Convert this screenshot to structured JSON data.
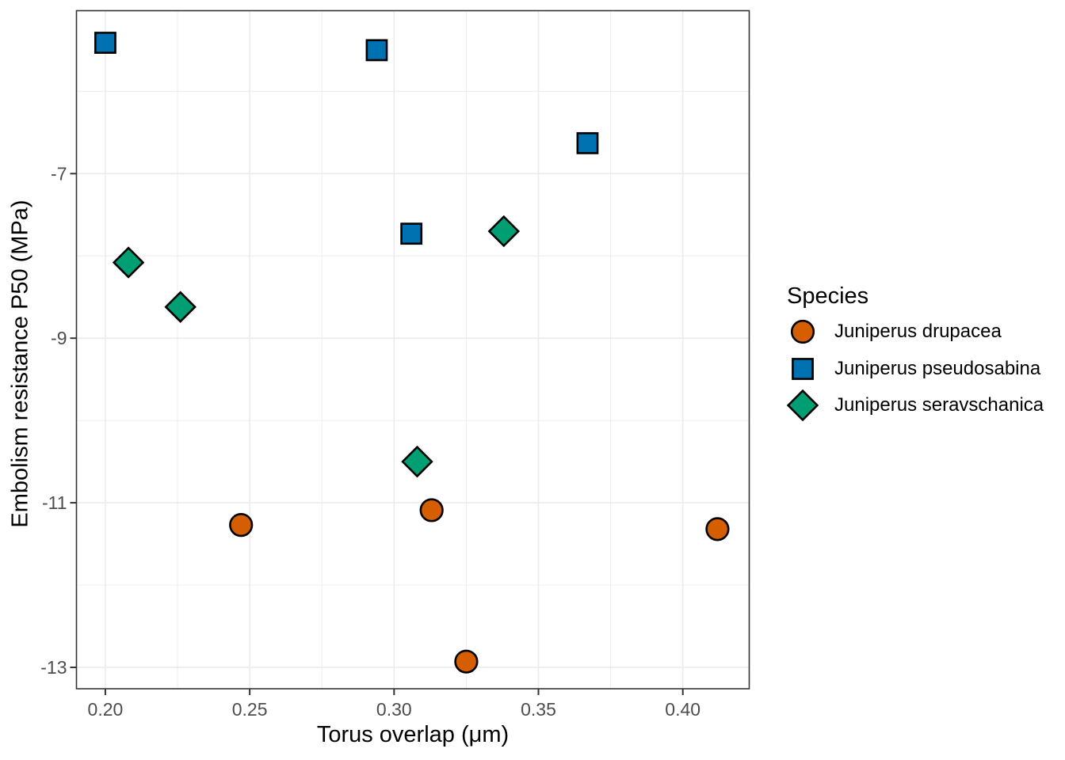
{
  "chart_data": {
    "type": "scatter",
    "title": "",
    "xlabel": "Torus overlap (μm)",
    "ylabel": "Embolism resistance P50 (MPa)",
    "legend_title": "Species",
    "legend_position": "right",
    "grid": true,
    "background": "#FFFFFF",
    "panel_border_color": "#333333",
    "grid_color": "#EBEBEB",
    "tick_label_color": "#4D4D4D",
    "marker_outline": "#000000",
    "xlim": [
      0.19,
      0.423
    ],
    "ylim": [
      -13.26,
      -5.02
    ],
    "x_ticks": [
      0.2,
      0.25,
      0.3,
      0.35,
      0.4
    ],
    "x_tick_labels": [
      "0.20",
      "0.25",
      "0.30",
      "0.35",
      "0.40"
    ],
    "x_minor_ticks": [
      0.225,
      0.275,
      0.325,
      0.375
    ],
    "y_ticks": [
      -7,
      -9,
      -11,
      -13
    ],
    "y_tick_labels": [
      "-7",
      "-9",
      "-11",
      "-13"
    ],
    "y_minor_ticks": [
      -6,
      -8,
      -10,
      -12
    ],
    "series": [
      {
        "name": "Juniperus drupacea",
        "shape": "circle",
        "color": "#D55E00",
        "points": [
          {
            "x": 0.247,
            "y": -11.27
          },
          {
            "x": 0.313,
            "y": -11.09
          },
          {
            "x": 0.412,
            "y": -11.32
          },
          {
            "x": 0.325,
            "y": -12.93
          }
        ]
      },
      {
        "name": "Juniperus pseudosabina",
        "shape": "square",
        "color": "#0072B2",
        "points": [
          {
            "x": 0.2,
            "y": -5.41
          },
          {
            "x": 0.294,
            "y": -5.5
          },
          {
            "x": 0.367,
            "y": -6.63
          },
          {
            "x": 0.306,
            "y": -7.73
          }
        ]
      },
      {
        "name": "Juniperus seravschanica",
        "shape": "diamond",
        "color": "#009E73",
        "points": [
          {
            "x": 0.208,
            "y": -8.08
          },
          {
            "x": 0.226,
            "y": -8.62
          },
          {
            "x": 0.338,
            "y": -7.7
          },
          {
            "x": 0.308,
            "y": -10.5
          }
        ]
      }
    ]
  }
}
